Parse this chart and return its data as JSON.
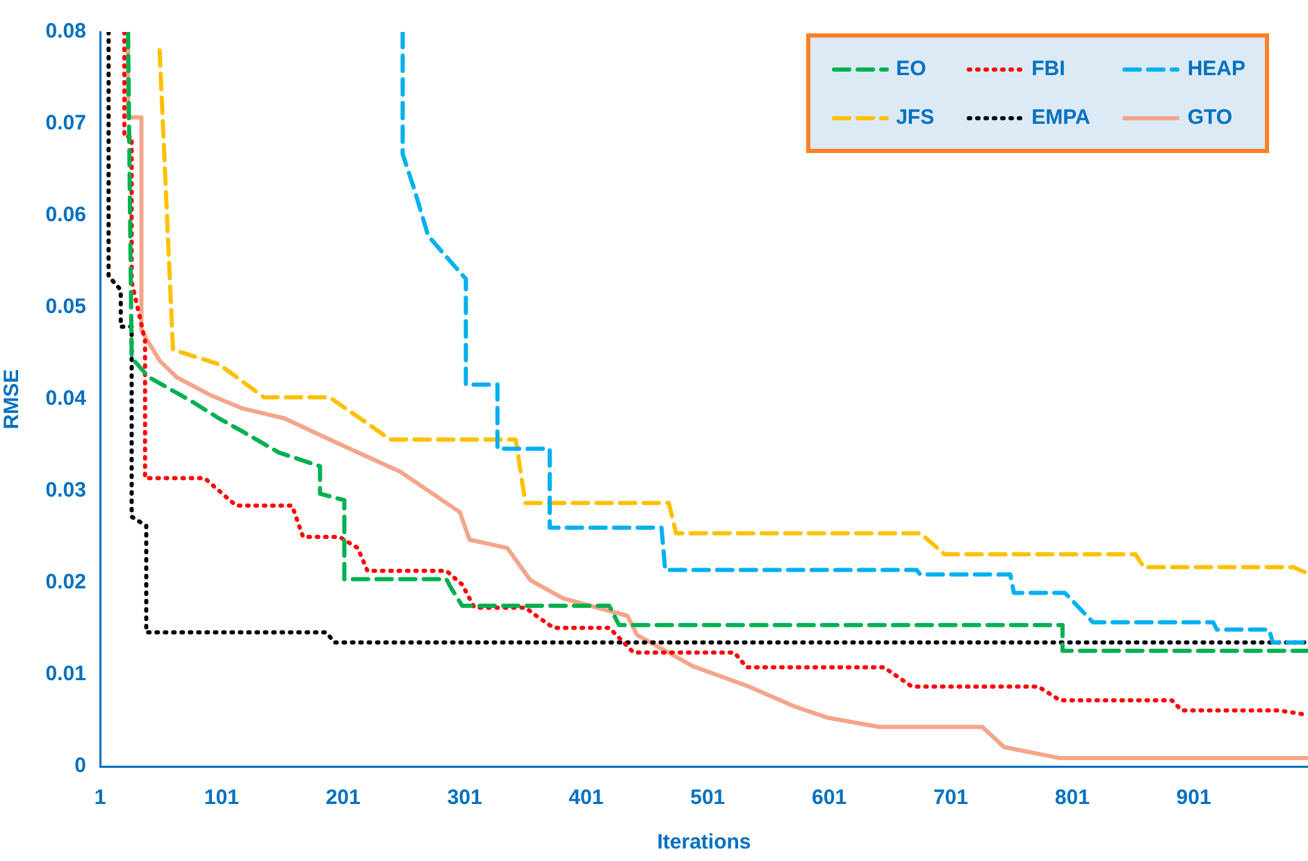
{
  "chart_data": {
    "type": "line",
    "xlabel": "Iterations",
    "ylabel": "RMSE",
    "xlim": [
      1,
      995
    ],
    "ylim": [
      0,
      0.08
    ],
    "xticks": [
      1,
      101,
      201,
      301,
      401,
      501,
      601,
      701,
      801,
      901
    ],
    "yticks": [
      0,
      0.01,
      0.02,
      0.03,
      0.04,
      0.05,
      0.06,
      0.07,
      0.08
    ],
    "grid": false,
    "legend": "top right",
    "marker": "none",
    "series": [
      {
        "name": "EO",
        "color": "#00b050",
        "line_style": "dashed",
        "x": [
          24,
          27,
          41,
          76,
          99,
          118,
          148,
          182,
          182,
          202,
          202,
          286,
          290,
          299,
          420,
          428,
          793,
          793,
          995
        ],
        "values": [
          0.08,
          0.0445,
          0.0424,
          0.0398,
          0.0379,
          0.0365,
          0.0342,
          0.0327,
          0.0297,
          0.029,
          0.0204,
          0.0204,
          0.0194,
          0.0175,
          0.0175,
          0.0154,
          0.0154,
          0.0126,
          0.0126
        ]
      },
      {
        "name": "FBI",
        "color": "#ff0000",
        "line_style": "dotted",
        "x": [
          21,
          21,
          27,
          27,
          38,
          38,
          87,
          113,
          159,
          168,
          198,
          213,
          221,
          286,
          299,
          309,
          351,
          360,
          374,
          420,
          440,
          523,
          533,
          646,
          669,
          773,
          791,
          883,
          891,
          971,
          995
        ],
        "values": [
          0.08,
          0.0686,
          0.0686,
          0.0528,
          0.0464,
          0.0314,
          0.0314,
          0.0284,
          0.0284,
          0.025,
          0.025,
          0.0238,
          0.0213,
          0.0213,
          0.0198,
          0.0173,
          0.0173,
          0.0164,
          0.0151,
          0.0151,
          0.0124,
          0.0124,
          0.0108,
          0.0108,
          0.0087,
          0.0087,
          0.0072,
          0.0072,
          0.0061,
          0.0061,
          0.0056
        ]
      },
      {
        "name": "HEAP",
        "color": "#00b0f0",
        "line_style": "dashed",
        "x": [
          250,
          250,
          259,
          271,
          290,
          302,
          302,
          328,
          328,
          371,
          371,
          463,
          466,
          673,
          676,
          750,
          753,
          795,
          818,
          917,
          920,
          963,
          966,
          995
        ],
        "values": [
          0.08,
          0.0667,
          0.0631,
          0.0578,
          0.0549,
          0.0531,
          0.0416,
          0.0416,
          0.0346,
          0.0346,
          0.026,
          0.026,
          0.0214,
          0.0214,
          0.0209,
          0.0209,
          0.0189,
          0.0189,
          0.0157,
          0.0157,
          0.0149,
          0.0149,
          0.0135,
          0.0135
        ]
      },
      {
        "name": "JFS",
        "color": "#ffc000",
        "line_style": "dashed",
        "x": [
          50,
          61,
          99,
          136,
          190,
          240,
          343,
          351,
          469,
          475,
          676,
          696,
          853,
          860,
          983,
          995
        ],
        "values": [
          0.078,
          0.0454,
          0.0438,
          0.0402,
          0.0402,
          0.0356,
          0.0356,
          0.0287,
          0.0287,
          0.0254,
          0.0254,
          0.0231,
          0.0231,
          0.0217,
          0.0217,
          0.021
        ]
      },
      {
        "name": "EMPA",
        "color": "#000000",
        "line_style": "dotted",
        "x": [
          8,
          8,
          18,
          18,
          27,
          27,
          39,
          39,
          187,
          194,
          995
        ],
        "values": [
          0.08,
          0.0534,
          0.0519,
          0.0479,
          0.0479,
          0.0272,
          0.0262,
          0.0146,
          0.0146,
          0.0135,
          0.0135
        ]
      },
      {
        "name": "GTO",
        "color": "#f4a58a",
        "line_style": "solid",
        "x": [
          24,
          24,
          35,
          35,
          50,
          64,
          91,
          118,
          153,
          190,
          248,
          297,
          305,
          336,
          355,
          382,
          435,
          443,
          489,
          535,
          573,
          600,
          642,
          727,
          745,
          791,
          995
        ],
        "values": [
          0.08,
          0.0707,
          0.0707,
          0.0475,
          0.0442,
          0.0424,
          0.0405,
          0.039,
          0.0379,
          0.0356,
          0.0321,
          0.0277,
          0.0247,
          0.0238,
          0.0203,
          0.0183,
          0.0164,
          0.0143,
          0.0109,
          0.0087,
          0.0065,
          0.0053,
          0.0043,
          0.0043,
          0.0021,
          0.0009,
          0.0009
        ]
      }
    ]
  }
}
